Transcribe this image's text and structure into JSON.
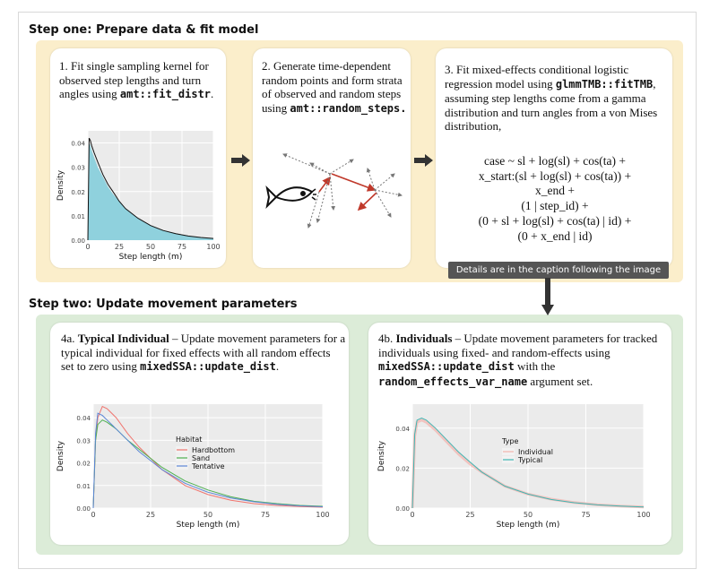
{
  "step_one": {
    "heading": "Step one: Prepare data & fit model",
    "card1": {
      "text": "1. Fit single sampling kernel for observed step lengths and turn angles using",
      "code": "amt::fit_distr",
      "suffix": "."
    },
    "card2": {
      "text": "2. Generate time-dependent random points and form strata of observed and random steps using",
      "code": "amt::random_steps."
    },
    "card3": {
      "text_before": "3. Fit mixed-effects conditional logistic regression model using",
      "code": "glmmTMB::fitTMB",
      "text_after": ", assuming step lengths come from a gamma distribution and turn angles from a von Mises distribution,",
      "formula": [
        "case ~ sl + log(sl) + cos(ta) +",
        "x_start:(sl + log(sl) + cos(ta)) +",
        "x_end +",
        "(1 | step_id) +",
        "(0 + sl + log(sl) + cos(ta) | id) +",
        "(0 + x_end | id)"
      ]
    },
    "tooltip": "Details are in the caption following the image"
  },
  "step_two": {
    "heading": "Step two: Update movement parameters",
    "card4a": {
      "prefix": "4a.",
      "title": "Typical Individual",
      "text": " – Update  movement parameters for a typical individual for fixed effects with all random effects set to zero using",
      "code": "mixedSSA::update_dist",
      "suffix": "."
    },
    "card4b": {
      "prefix": "4b.",
      "title": "Individuals",
      "text": " – Update movement parameters for tracked individuals using fixed- and random-effects using",
      "code1": "mixedSSA::update_dist",
      "mid": " with the",
      "code2": "random_effects_var_name",
      "text_end": " argument set."
    }
  },
  "chart_data": [
    {
      "type": "area",
      "xlabel": "Step length (m)",
      "ylabel": "Density",
      "xlim": [
        0,
        100
      ],
      "ylim": [
        0,
        0.045
      ],
      "xticks": [
        "0",
        "25",
        "50",
        "75",
        "100"
      ],
      "yticks": [
        "0.00",
        "0.01",
        "0.02",
        "0.03",
        "0.04"
      ],
      "grid": true,
      "series": [
        {
          "color": "#8fd1dd",
          "x": [
            0,
            1,
            2,
            3,
            5,
            8,
            12,
            16,
            20,
            25,
            30,
            40,
            50,
            60,
            70,
            80,
            90,
            100
          ],
          "y": [
            0,
            0.04,
            0.039,
            0.037,
            0.034,
            0.03,
            0.026,
            0.022,
            0.019,
            0.016,
            0.013,
            0.009,
            0.006,
            0.004,
            0.0028,
            0.0018,
            0.0011,
            0.0007
          ]
        },
        {
          "color": "#111111",
          "x": [
            0,
            1,
            2,
            3,
            5,
            8,
            12,
            16,
            20,
            25,
            30,
            40,
            50,
            60,
            70,
            80,
            90,
            100
          ],
          "y": [
            0,
            0.042,
            0.041,
            0.039,
            0.036,
            0.032,
            0.027,
            0.023,
            0.02,
            0.016,
            0.013,
            0.009,
            0.006,
            0.004,
            0.0027,
            0.0017,
            0.0011,
            0.0007
          ]
        }
      ]
    },
    {
      "type": "line",
      "xlabel": "Step length (m)",
      "ylabel": "Density",
      "xlim": [
        0,
        100
      ],
      "ylim": [
        0,
        0.046
      ],
      "xticks": [
        "0",
        "25",
        "50",
        "75",
        "100"
      ],
      "yticks": [
        "0.00",
        "0.01",
        "0.02",
        "0.03",
        "0.04"
      ],
      "grid": true,
      "legend_title": "Habitat",
      "legend_position": "center-right",
      "series": [
        {
          "name": "Hardbottom",
          "color": "#f0746e",
          "x": [
            0,
            1,
            2,
            4,
            6,
            10,
            15,
            20,
            25,
            30,
            40,
            50,
            60,
            70,
            80,
            90,
            100
          ],
          "y": [
            0,
            0.03,
            0.04,
            0.045,
            0.044,
            0.04,
            0.033,
            0.027,
            0.022,
            0.017,
            0.01,
            0.006,
            0.0035,
            0.002,
            0.0012,
            0.0007,
            0.0004
          ]
        },
        {
          "name": "Sand",
          "color": "#4db050",
          "x": [
            0,
            1,
            2,
            4,
            6,
            10,
            15,
            20,
            25,
            30,
            40,
            50,
            60,
            70,
            80,
            90,
            100
          ],
          "y": [
            0,
            0.03,
            0.037,
            0.039,
            0.038,
            0.035,
            0.03,
            0.026,
            0.022,
            0.018,
            0.012,
            0.008,
            0.005,
            0.003,
            0.002,
            0.0012,
            0.0008
          ]
        },
        {
          "name": "Tentative",
          "color": "#5b86d6",
          "x": [
            0,
            1,
            2,
            4,
            6,
            10,
            15,
            20,
            25,
            30,
            40,
            50,
            60,
            70,
            80,
            90,
            100
          ],
          "y": [
            0,
            0.033,
            0.042,
            0.041,
            0.039,
            0.035,
            0.03,
            0.025,
            0.021,
            0.017,
            0.011,
            0.007,
            0.0045,
            0.0028,
            0.0017,
            0.001,
            0.0006
          ]
        }
      ]
    },
    {
      "type": "line",
      "xlabel": "Step length (m)",
      "ylabel": "Density",
      "xlim": [
        0,
        100
      ],
      "ylim": [
        0,
        0.052
      ],
      "xticks": [
        "0",
        "25",
        "50",
        "75",
        "100"
      ],
      "yticks": [
        "0.00",
        "0.02",
        "0.04"
      ],
      "grid": true,
      "legend_title": "Type",
      "legend_position": "center-right",
      "series": [
        {
          "name": "Individual",
          "color": "#f3b2ad",
          "x": [
            0,
            1,
            2,
            4,
            6,
            10,
            15,
            20,
            25,
            30,
            40,
            50,
            60,
            70,
            80,
            90,
            100
          ],
          "y": [
            0,
            0.036,
            0.043,
            0.044,
            0.043,
            0.039,
            0.033,
            0.027,
            0.022,
            0.018,
            0.011,
            0.007,
            0.0045,
            0.0028,
            0.0017,
            0.001,
            0.0006
          ]
        },
        {
          "name": "Typical",
          "color": "#3fb7b4",
          "x": [
            0,
            1,
            2,
            4,
            6,
            10,
            15,
            20,
            25,
            30,
            40,
            50,
            60,
            70,
            80,
            90,
            100
          ],
          "y": [
            0,
            0.037,
            0.044,
            0.045,
            0.044,
            0.04,
            0.034,
            0.028,
            0.023,
            0.018,
            0.011,
            0.007,
            0.0043,
            0.0027,
            0.0016,
            0.001,
            0.0006
          ]
        }
      ]
    }
  ]
}
